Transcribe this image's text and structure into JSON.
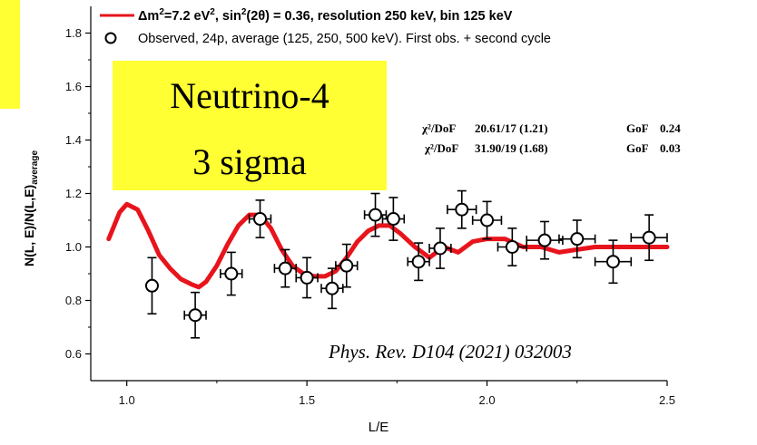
{
  "chart_data": {
    "type": "scatter",
    "title": "",
    "xlabel": "L/E",
    "ylabel": "N(L, E)/N(L,E)",
    "ylabel_sub": "average",
    "xlim": [
      0.9,
      2.5
    ],
    "ylim": [
      0.5,
      1.9
    ],
    "xticks": [
      "1.0",
      "1.5",
      "2.0",
      "2.5"
    ],
    "yticks": [
      "0.6",
      "0.8",
      "1.0",
      "1.2",
      "1.4",
      "1.6",
      "1.8"
    ],
    "grid": false,
    "legend": {
      "placement": "top",
      "entries": [
        {
          "marker": "line",
          "color": "#e8141c",
          "parts": [
            {
              "t": "Δm"
            },
            {
              "t": "2",
              "sup": true
            },
            {
              "t": "=7.2 eV"
            },
            {
              "t": "2",
              "sup": true
            },
            {
              "t": ", sin"
            },
            {
              "t": "2",
              "sup": true
            },
            {
              "t": "(2θ) = 0.36, resolution 250 keV, bin 125 keV"
            }
          ]
        },
        {
          "marker": "circle",
          "color": "#000000",
          "parts": [
            {
              "t": "Observed, 24p, average (125, 250, 500 keV). First obs. + second cycle"
            }
          ]
        }
      ]
    },
    "series": [
      {
        "name": "Observed, 24p, average (125, 250, 500 keV). First obs. + second cycle",
        "kind": "points",
        "points": [
          {
            "x": 1.07,
            "y": 0.855,
            "xerr": 0.0,
            "yerr": 0.105
          },
          {
            "x": 1.19,
            "y": 0.745,
            "xerr": 0.03,
            "yerr": 0.085
          },
          {
            "x": 1.29,
            "y": 0.9,
            "xerr": 0.03,
            "yerr": 0.08
          },
          {
            "x": 1.37,
            "y": 1.105,
            "xerr": 0.03,
            "yerr": 0.07
          },
          {
            "x": 1.44,
            "y": 0.92,
            "xerr": 0.03,
            "yerr": 0.07
          },
          {
            "x": 1.5,
            "y": 0.885,
            "xerr": 0.03,
            "yerr": 0.075
          },
          {
            "x": 1.57,
            "y": 0.845,
            "xerr": 0.03,
            "yerr": 0.075
          },
          {
            "x": 1.61,
            "y": 0.93,
            "xerr": 0.03,
            "yerr": 0.08
          },
          {
            "x": 1.69,
            "y": 1.12,
            "xerr": 0.03,
            "yerr": 0.08
          },
          {
            "x": 1.74,
            "y": 1.105,
            "xerr": 0.03,
            "yerr": 0.08
          },
          {
            "x": 1.81,
            "y": 0.945,
            "xerr": 0.03,
            "yerr": 0.07
          },
          {
            "x": 1.87,
            "y": 0.995,
            "xerr": 0.03,
            "yerr": 0.075
          },
          {
            "x": 1.93,
            "y": 1.14,
            "xerr": 0.04,
            "yerr": 0.07
          },
          {
            "x": 2.0,
            "y": 1.1,
            "xerr": 0.04,
            "yerr": 0.07
          },
          {
            "x": 2.07,
            "y": 1.0,
            "xerr": 0.04,
            "yerr": 0.07
          },
          {
            "x": 2.16,
            "y": 1.025,
            "xerr": 0.05,
            "yerr": 0.07
          },
          {
            "x": 2.25,
            "y": 1.03,
            "xerr": 0.05,
            "yerr": 0.07
          },
          {
            "x": 2.35,
            "y": 0.945,
            "xerr": 0.05,
            "yerr": 0.08
          },
          {
            "x": 2.45,
            "y": 1.035,
            "xerr": 0.05,
            "yerr": 0.085
          }
        ]
      },
      {
        "name": "Δm²=7.2 eV², sin²(2θ) = 0.36, resolution 250 keV, bin 125 keV",
        "kind": "line",
        "color": "#e8141c",
        "x": [
          0.95,
          0.98,
          1.0,
          1.03,
          1.06,
          1.09,
          1.12,
          1.15,
          1.18,
          1.2,
          1.22,
          1.25,
          1.28,
          1.31,
          1.34,
          1.37,
          1.4,
          1.43,
          1.46,
          1.49,
          1.52,
          1.55,
          1.58,
          1.61,
          1.64,
          1.67,
          1.7,
          1.73,
          1.76,
          1.8,
          1.84,
          1.88,
          1.92,
          1.96,
          2.0,
          2.05,
          2.1,
          2.15,
          2.2,
          2.25,
          2.3,
          2.35,
          2.4,
          2.45,
          2.5
        ],
        "y": [
          1.03,
          1.13,
          1.16,
          1.14,
          1.06,
          0.97,
          0.92,
          0.88,
          0.86,
          0.85,
          0.87,
          0.93,
          1.01,
          1.08,
          1.12,
          1.12,
          1.07,
          0.99,
          0.93,
          0.9,
          0.89,
          0.89,
          0.91,
          0.96,
          1.02,
          1.06,
          1.08,
          1.08,
          1.05,
          1.0,
          0.96,
          1.0,
          0.98,
          1.02,
          1.03,
          1.03,
          1.0,
          1.0,
          0.98,
          0.99,
          1.0,
          1.0,
          1.0,
          1.0,
          1.0
        ]
      }
    ],
    "stats": [
      {
        "label": "χ²/DoF",
        "value": "20.61/17 (1.21)",
        "gof_label": "GoF",
        "gof": "0.24"
      },
      {
        "label": "χ²/DoF",
        "value": "31.90/19 (1.68)",
        "gof_label": "GoF",
        "gof": "0.03"
      }
    ],
    "badge": {
      "line1": "Neutrino-4",
      "line2": "3 sigma",
      "color": "#ffff33"
    },
    "reference": "Phys. Rev. D104 (2021) 032003",
    "accent_color": "#ffff33"
  }
}
